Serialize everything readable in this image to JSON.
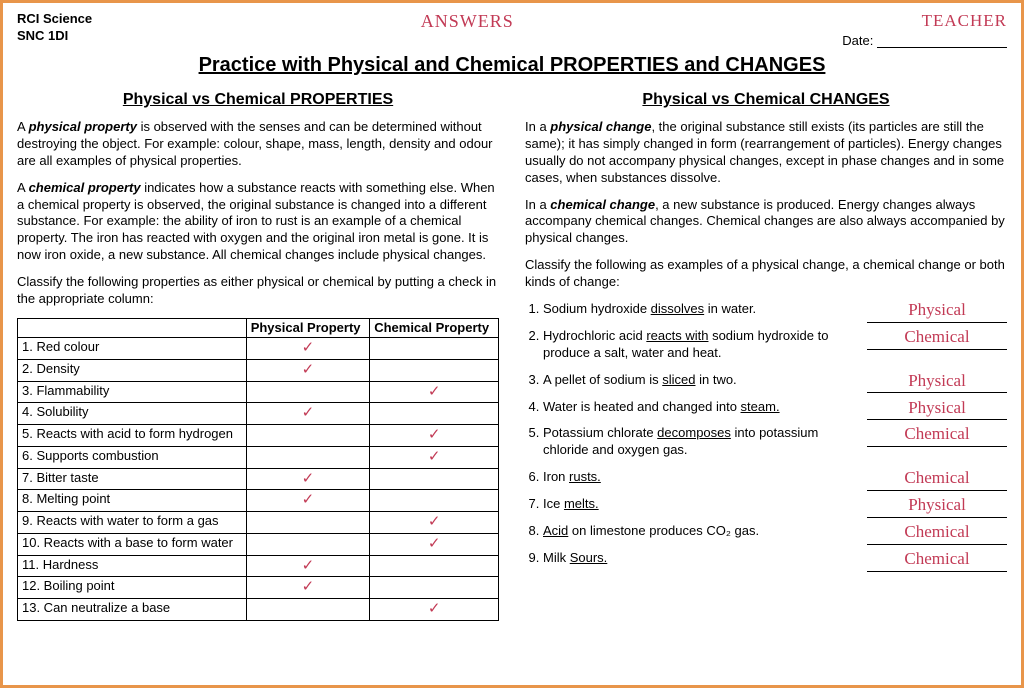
{
  "header": {
    "school_line1": "RCI Science",
    "school_line2": "SNC 1DI",
    "answers_label": "ANSWERS",
    "teacher_label": "TEACHER",
    "date_label": "Date:"
  },
  "main_title": "Practice with Physical and Chemical PROPERTIES and CHANGES",
  "left": {
    "title": "Physical vs Chemical PROPERTIES",
    "p1_pre": "A ",
    "p1_term": "physical property",
    "p1_post": " is observed with the senses and can be determined without destroying the object. For example: colour, shape, mass, length, density and odour are all examples of physical properties.",
    "p2_pre": "A ",
    "p2_term": "chemical property",
    "p2_post": " indicates how a substance reacts with something else. When a chemical property is observed, the original substance is changed into a different substance. For example: the ability of iron to rust is an example of a chemical property. The iron has reacted with oxygen and the original iron metal is gone. It is now iron oxide, a new substance. All chemical changes include physical changes.",
    "classify_text": "Classify the following properties as either physical or chemical by putting a check in the appropriate column:",
    "table": {
      "h1": "",
      "h2": "Physical Property",
      "h3": "Chemical Property",
      "rows": [
        {
          "label": "1. Red colour",
          "phys": "✓",
          "chem": ""
        },
        {
          "label": "2. Density",
          "phys": "✓",
          "chem": ""
        },
        {
          "label": "3. Flammability",
          "phys": "",
          "chem": "✓"
        },
        {
          "label": "4. Solubility",
          "phys": "✓",
          "chem": ""
        },
        {
          "label": "5. Reacts with acid to form hydrogen",
          "phys": "",
          "chem": "✓"
        },
        {
          "label": "6. Supports combustion",
          "phys": "",
          "chem": "✓"
        },
        {
          "label": "7. Bitter taste",
          "phys": "✓",
          "chem": ""
        },
        {
          "label": "8. Melting point",
          "phys": "✓",
          "chem": ""
        },
        {
          "label": "9. Reacts with water to form a gas",
          "phys": "",
          "chem": "✓"
        },
        {
          "label": "10. Reacts with a base to form water",
          "phys": "",
          "chem": "✓"
        },
        {
          "label": "11. Hardness",
          "phys": "✓",
          "chem": ""
        },
        {
          "label": "12. Boiling point",
          "phys": "✓",
          "chem": ""
        },
        {
          "label": "13. Can neutralize a base",
          "phys": "",
          "chem": "✓"
        }
      ]
    }
  },
  "right": {
    "title": "Physical vs Chemical CHANGES",
    "p1_pre": "In a ",
    "p1_term": "physical change",
    "p1_post": ", the original substance still exists (its particles are still the same); it has simply changed in form (rearrangement of particles). Energy changes usually do not accompany physical changes, except in phase changes and in some cases, when substances dissolve.",
    "p2_pre": "In a ",
    "p2_term": "chemical change",
    "p2_post": ", a new substance is produced. Energy changes always accompany chemical changes. Chemical changes are also always accompanied by physical changes.",
    "classify_text": "Classify the following as examples of a physical change, a chemical change or both kinds of change:",
    "items": [
      {
        "text": "Sodium hydroxide <span class=\"u\">dissolves</span> in water.",
        "answer": "Physical"
      },
      {
        "text": "Hydrochloric acid <span class=\"u\">reacts with</span> sodium hydroxide to produce a salt, water and heat.",
        "answer": "Chemical"
      },
      {
        "text": "A pellet of sodium is <span class=\"u\">sliced</span> in two.",
        "answer": "Physical"
      },
      {
        "text": "Water is heated and changed into <span class=\"u\">steam.</span>",
        "answer": "Physical"
      },
      {
        "text": "Potassium chlorate <span class=\"u\">decomposes</span> into potassium chloride and oxygen gas.",
        "answer": "Chemical"
      },
      {
        "text": "Iron <span class=\"u\">rusts.</span>",
        "answer": "Chemical"
      },
      {
        "text": "Ice <span class=\"u\">melts.</span>",
        "answer": "Physical"
      },
      {
        "text": "<span class=\"u\">Acid</span> on limestone produces CO₂ gas.",
        "answer": "Chemical"
      },
      {
        "text": "Milk <span class=\"u\">Sours.</span>",
        "answer": "Chemical"
      }
    ]
  }
}
